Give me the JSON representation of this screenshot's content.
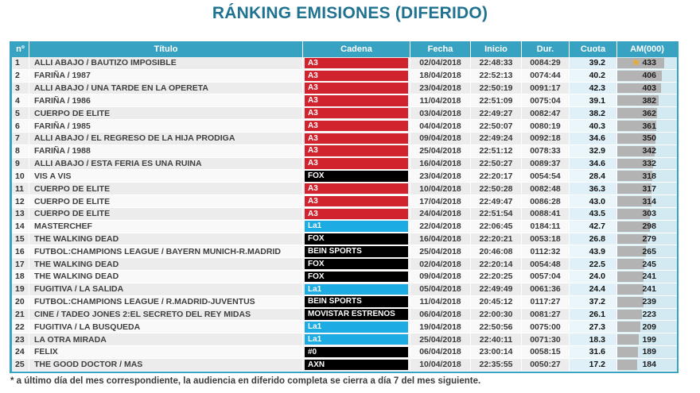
{
  "title": "RÁNKING EMISIONES (DIFERIDO)",
  "footnote": "* a último día del mes correspondiente, la audiencia en diferido completa se cierra a día 7 del mes siguiente.",
  "colors": {
    "header_bg": "#38a2c2",
    "title_text": "#1f7391",
    "table_border": "#38a2c2",
    "star": "#eda929",
    "am_bar": "#b3b3b3",
    "am_cell_bg": "#d4eaf3",
    "channels": {
      "A3": "#d0232e",
      "FOX": "#000000",
      "La1": "#1cabe2",
      "BEIN SPORTS": "#000000",
      "MOVISTAR ESTRENOS": "#000000",
      "#0": "#000000",
      "AXN": "#000000"
    }
  },
  "chart_data": {
    "type": "table",
    "title": "RÁNKING EMISIONES (DIFERIDO)",
    "columns": [
      {
        "key": "n",
        "label": "nº"
      },
      {
        "key": "titulo",
        "label": "Título"
      },
      {
        "key": "cadena",
        "label": "Cadena"
      },
      {
        "key": "fecha",
        "label": "Fecha"
      },
      {
        "key": "inicio",
        "label": "Inicio"
      },
      {
        "key": "dur",
        "label": "Dur."
      },
      {
        "key": "cuota",
        "label": "Cuota"
      },
      {
        "key": "am",
        "label": "AM(000)"
      }
    ],
    "am_axis_max": 433,
    "rows": [
      {
        "n": 1,
        "titulo": "ALLI ABAJO / BAUTIZO IMPOSIBLE",
        "cadena": "A3",
        "fecha": "02/04/2018",
        "inicio": "22:48:33",
        "dur": "0084:29",
        "cuota": "39.2",
        "am": 433,
        "star": true
      },
      {
        "n": 2,
        "titulo": "FARIÑA / 1987",
        "cadena": "A3",
        "fecha": "18/04/2018",
        "inicio": "22:52:13",
        "dur": "0074:44",
        "cuota": "40.2",
        "am": 406
      },
      {
        "n": 3,
        "titulo": "ALLI ABAJO / UNA TARDE EN LA OPERETA",
        "cadena": "A3",
        "fecha": "23/04/2018",
        "inicio": "22:50:19",
        "dur": "0091:17",
        "cuota": "42.3",
        "am": 403
      },
      {
        "n": 4,
        "titulo": "FARIÑA / 1986",
        "cadena": "A3",
        "fecha": "11/04/2018",
        "inicio": "22:51:09",
        "dur": "0075:04",
        "cuota": "39.1",
        "am": 382
      },
      {
        "n": 5,
        "titulo": "CUERPO DE ELITE",
        "cadena": "A3",
        "fecha": "03/04/2018",
        "inicio": "22:49:27",
        "dur": "0082:47",
        "cuota": "38.2",
        "am": 362
      },
      {
        "n": 6,
        "titulo": "FARIÑA / 1985",
        "cadena": "A3",
        "fecha": "04/04/2018",
        "inicio": "22:50:07",
        "dur": "0080:19",
        "cuota": "40.3",
        "am": 361
      },
      {
        "n": 7,
        "titulo": "ALLI ABAJO / EL REGRESO DE LA HIJA PRODIGA",
        "cadena": "A3",
        "fecha": "09/04/2018",
        "inicio": "22:49:24",
        "dur": "0092:18",
        "cuota": "34.6",
        "am": 350
      },
      {
        "n": 8,
        "titulo": "FARIÑA / 1988",
        "cadena": "A3",
        "fecha": "25/04/2018",
        "inicio": "22:51:12",
        "dur": "0078:33",
        "cuota": "32.9",
        "am": 342
      },
      {
        "n": 9,
        "titulo": "ALLI ABAJO / ESTA FERIA ES UNA RUINA",
        "cadena": "A3",
        "fecha": "16/04/2018",
        "inicio": "22:50:27",
        "dur": "0089:37",
        "cuota": "34.6",
        "am": 332
      },
      {
        "n": 10,
        "titulo": "VIS A VIS",
        "cadena": "FOX",
        "fecha": "23/04/2018",
        "inicio": "22:20:17",
        "dur": "0054:54",
        "cuota": "28.4",
        "am": 318
      },
      {
        "n": 11,
        "titulo": "CUERPO DE ELITE",
        "cadena": "A3",
        "fecha": "10/04/2018",
        "inicio": "22:50:28",
        "dur": "0082:48",
        "cuota": "36.3",
        "am": 317
      },
      {
        "n": 12,
        "titulo": "CUERPO DE ELITE",
        "cadena": "A3",
        "fecha": "17/04/2018",
        "inicio": "22:49:47",
        "dur": "0086:28",
        "cuota": "43.0",
        "am": 314
      },
      {
        "n": 13,
        "titulo": "CUERPO DE ELITE",
        "cadena": "A3",
        "fecha": "24/04/2018",
        "inicio": "22:51:54",
        "dur": "0088:41",
        "cuota": "43.5",
        "am": 303
      },
      {
        "n": 14,
        "titulo": "MASTERCHEF",
        "cadena": "La1",
        "fecha": "22/04/2018",
        "inicio": "22:06:45",
        "dur": "0184:11",
        "cuota": "42.7",
        "am": 298
      },
      {
        "n": 15,
        "titulo": "THE WALKING DEAD",
        "cadena": "FOX",
        "fecha": "16/04/2018",
        "inicio": "22:20:21",
        "dur": "0053:18",
        "cuota": "26.8",
        "am": 279
      },
      {
        "n": 16,
        "titulo": "FUTBOL:CHAMPIONS LEAGUE / BAYERN MUNICH-R.MADRID",
        "cadena": "BEIN SPORTS",
        "fecha": "25/04/2018",
        "inicio": "20:46:08",
        "dur": "0112:32",
        "cuota": "43.9",
        "am": 265
      },
      {
        "n": 17,
        "titulo": "THE WALKING DEAD",
        "cadena": "FOX",
        "fecha": "02/04/2018",
        "inicio": "22:20:14",
        "dur": "0054:48",
        "cuota": "22.5",
        "am": 245
      },
      {
        "n": 18,
        "titulo": "THE WALKING DEAD",
        "cadena": "FOX",
        "fecha": "09/04/2018",
        "inicio": "22:20:25",
        "dur": "0057:04",
        "cuota": "24.0",
        "am": 241
      },
      {
        "n": 19,
        "titulo": "FUGITIVA / LA SALIDA",
        "cadena": "La1",
        "fecha": "05/04/2018",
        "inicio": "22:49:49",
        "dur": "0061:36",
        "cuota": "24.4",
        "am": 241
      },
      {
        "n": 20,
        "titulo": "FUTBOL:CHAMPIONS LEAGUE / R.MADRID-JUVENTUS",
        "cadena": "BEIN SPORTS",
        "fecha": "11/04/2018",
        "inicio": "20:45:12",
        "dur": "0117:27",
        "cuota": "37.2",
        "am": 239
      },
      {
        "n": 21,
        "titulo": "CINE / TADEO JONES 2:EL SECRETO DEL REY MIDAS",
        "cadena": "MOVISTAR ESTRENOS",
        "fecha": "06/04/2018",
        "inicio": "22:00:30",
        "dur": "0081:27",
        "cuota": "26.1",
        "am": 223
      },
      {
        "n": 22,
        "titulo": "FUGITIVA / LA BUSQUEDA",
        "cadena": "La1",
        "fecha": "19/04/2018",
        "inicio": "22:50:56",
        "dur": "0075:00",
        "cuota": "27.3",
        "am": 209
      },
      {
        "n": 23,
        "titulo": "LA OTRA MIRADA",
        "cadena": "La1",
        "fecha": "25/04/2018",
        "inicio": "22:40:11",
        "dur": "0071:30",
        "cuota": "18.3",
        "am": 199
      },
      {
        "n": 24,
        "titulo": "FELIX",
        "cadena": "#0",
        "fecha": "06/04/2018",
        "inicio": "23:00:14",
        "dur": "0058:15",
        "cuota": "31.6",
        "am": 189
      },
      {
        "n": 25,
        "titulo": "THE GOOD DOCTOR / MAS",
        "cadena": "AXN",
        "fecha": "10/04/2018",
        "inicio": "22:35:55",
        "dur": "0050:27",
        "cuota": "17.2",
        "am": 184
      }
    ]
  }
}
